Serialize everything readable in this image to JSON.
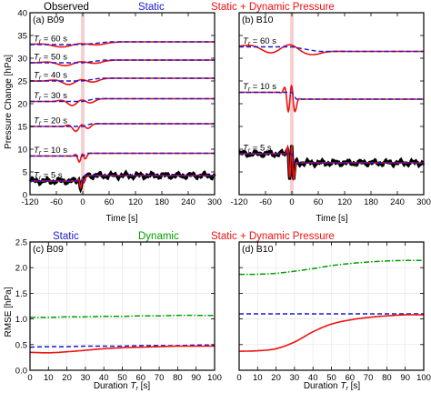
{
  "colors": {
    "observed": "#000000",
    "static": "#1a1acc",
    "dynamic": "#00a000",
    "static_dynamic": "#ee1111",
    "shade": "#f2c2c2"
  },
  "legend_top": {
    "observed": "Observed",
    "static": "Static",
    "static_dynamic": "Static + Dynamic Pressure"
  },
  "legend_bottom": {
    "static": "Static",
    "dynamic": "Dynamic",
    "static_dynamic": "Static + Dynamic Pressure"
  },
  "shared_labels": {
    "y_top": "Pressure Change [hPa]",
    "x_top": "Time [s]",
    "y_bottom": "RMSE [hPa]",
    "x_bottom_text": "Duration ",
    "x_bottom_var": "T",
    "x_bottom_sub": "r",
    "x_bottom_unit": " [s]"
  },
  "chart_data": [
    {
      "panel": "(a) B09",
      "type": "line",
      "xlabel": "Time [s]",
      "ylabel": "Pressure Change [hPa]",
      "xlim": [
        -120,
        300
      ],
      "ylim": [
        0,
        40
      ],
      "xticks": [
        -120,
        -60,
        0,
        60,
        120,
        180,
        240,
        300
      ],
      "yticks": [
        0,
        5,
        10,
        15,
        20,
        25,
        30,
        35,
        40
      ],
      "grid": false,
      "shaded_interval": [
        -4,
        4
      ],
      "traces": [
        {
          "label": "Tr = 60 s",
          "tr": 60,
          "offset": 33,
          "static_step": 0.6,
          "wave_amp": 1.0
        },
        {
          "label": "Tr = 50 s",
          "tr": 50,
          "offset": 29,
          "static_step": 0.6,
          "wave_amp": 1.2
        },
        {
          "label": "Tr = 40 s",
          "tr": 40,
          "offset": 25,
          "static_step": 0.6,
          "wave_amp": 1.5
        },
        {
          "label": "Tr = 30 s",
          "tr": 30,
          "offset": 20.5,
          "static_step": 0.6,
          "wave_amp": 1.7
        },
        {
          "label": "Tr = 20 s",
          "tr": 20,
          "offset": 15,
          "static_step": 0.6,
          "wave_amp": 2.0
        },
        {
          "label": "Tr = 10 s",
          "tr": 10,
          "offset": 8.5,
          "static_step": 0.6,
          "wave_amp": 2.5
        },
        {
          "label": "Tr = 5 s",
          "tr": 5,
          "offset": 3,
          "static_step": 1.2,
          "wave_amp": 2.8,
          "observed": true
        }
      ]
    },
    {
      "panel": "(b) B10",
      "type": "line",
      "xlabel": "Time [s]",
      "xlim": [
        -120,
        300
      ],
      "ylim": [
        0,
        40
      ],
      "xticks": [
        -120,
        -60,
        0,
        60,
        120,
        180,
        240,
        300
      ],
      "yticks": [
        0,
        5,
        10,
        15,
        20,
        25,
        30,
        35,
        40
      ],
      "grid": false,
      "shaded_interval": [
        -4,
        4
      ],
      "traces": [
        {
          "label": "Tr = 60 s",
          "tr": 60,
          "offset": 32.5,
          "static_step": -1.0,
          "wave_amp": 2.5
        },
        {
          "label": "Tr = 10 s",
          "tr": 10,
          "offset": 22.5,
          "static_step": -1.5,
          "wave_amp": 8.0
        },
        {
          "label": "Tr = 5 s",
          "tr": 5,
          "offset": 9,
          "static_step": -2.0,
          "wave_amp": 10.0,
          "observed": true
        }
      ]
    },
    {
      "panel": "(c) B09",
      "type": "line",
      "xlabel": "Duration Tr [s]",
      "ylabel": "RMSE [hPa]",
      "xlim": [
        0,
        100
      ],
      "ylim": [
        0,
        2.5
      ],
      "xticks": [
        0,
        10,
        20,
        30,
        40,
        50,
        60,
        70,
        80,
        90,
        100
      ],
      "yticks": [
        0.0,
        0.5,
        1.0,
        1.5,
        2.0,
        2.5
      ],
      "grid": true,
      "x": [
        0,
        10,
        20,
        30,
        40,
        50,
        60,
        70,
        80,
        90,
        100
      ],
      "series": [
        {
          "name": "Static",
          "values": [
            0.45,
            0.46,
            0.46,
            0.47,
            0.47,
            0.47,
            0.48,
            0.48,
            0.48,
            0.49,
            0.49
          ]
        },
        {
          "name": "Dynamic",
          "values": [
            1.03,
            1.03,
            1.04,
            1.04,
            1.05,
            1.05,
            1.06,
            1.06,
            1.07,
            1.07,
            1.07
          ]
        },
        {
          "name": "Static + Dynamic Pressure",
          "values": [
            0.35,
            0.34,
            0.36,
            0.39,
            0.42,
            0.44,
            0.45,
            0.46,
            0.47,
            0.47,
            0.47
          ]
        }
      ]
    },
    {
      "panel": "(d) B10",
      "type": "line",
      "xlabel": "Duration Tr [s]",
      "xlim": [
        0,
        100
      ],
      "ylim": [
        0,
        2.5
      ],
      "xticks": [
        0,
        10,
        20,
        30,
        40,
        50,
        60,
        70,
        80,
        90,
        100
      ],
      "yticks": [
        0.0,
        0.5,
        1.0,
        1.5,
        2.0,
        2.5
      ],
      "grid": true,
      "x": [
        0,
        10,
        20,
        30,
        40,
        50,
        60,
        70,
        80,
        90,
        100
      ],
      "series": [
        {
          "name": "Static",
          "values": [
            1.1,
            1.1,
            1.1,
            1.1,
            1.1,
            1.1,
            1.1,
            1.1,
            1.1,
            1.1,
            1.1
          ]
        },
        {
          "name": "Dynamic",
          "values": [
            1.87,
            1.87,
            1.89,
            1.93,
            1.98,
            2.04,
            2.08,
            2.11,
            2.13,
            2.14,
            2.14
          ]
        },
        {
          "name": "Static + Dynamic Pressure",
          "values": [
            0.37,
            0.38,
            0.42,
            0.55,
            0.75,
            0.9,
            0.98,
            1.03,
            1.06,
            1.08,
            1.08
          ]
        }
      ]
    }
  ]
}
